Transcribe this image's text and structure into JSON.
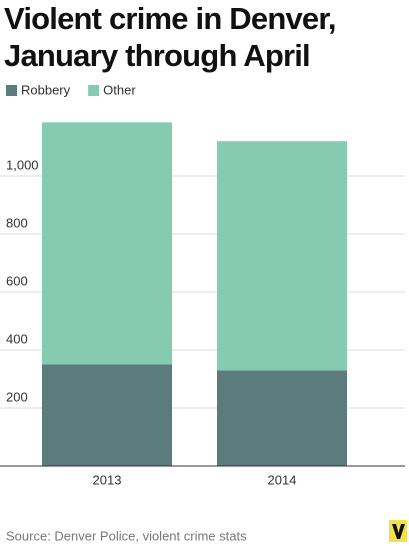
{
  "chart_data": {
    "type": "stacked-bar",
    "title": "Violent crime in Denver, January through April",
    "source": "Source: Denver Police, violent crime stats",
    "categories": [
      "2013",
      "2014"
    ],
    "series": [
      {
        "name": "Robbery",
        "color": "#5b7b7c",
        "values": [
          350,
          330
        ]
      },
      {
        "name": "Other",
        "color": "#84cbb1",
        "values": [
          835,
          790
        ]
      }
    ],
    "ylim": [
      0,
      1200
    ],
    "yticks": [
      200,
      400,
      600,
      800,
      {
        "value": 1000,
        "label": "1,000"
      }
    ],
    "grid": true,
    "legend": "top-left"
  }
}
